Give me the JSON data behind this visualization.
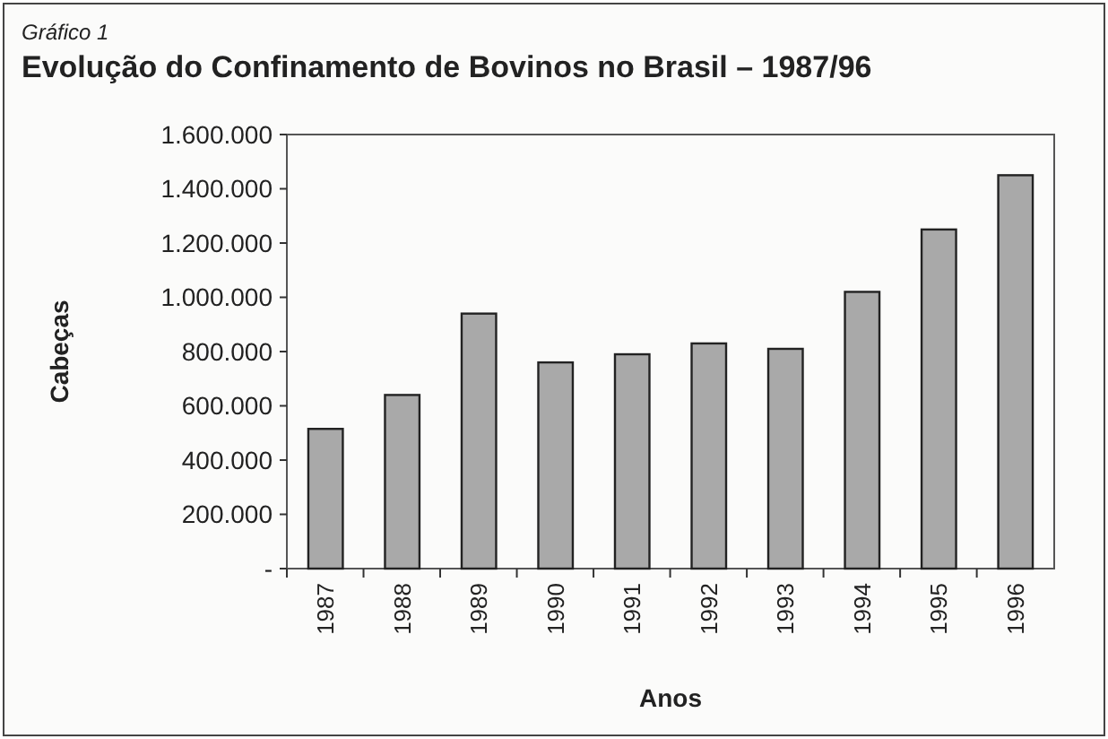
{
  "chart_data": {
    "type": "bar",
    "subtitle": "Gráfico 1",
    "title": "Evolução do Confinamento de Bovinos no Brasil – 1987/96",
    "xlabel": "Anos",
    "ylabel": "Cabeças",
    "categories": [
      "1987",
      "1988",
      "1989",
      "1990",
      "1991",
      "1992",
      "1993",
      "1994",
      "1995",
      "1996"
    ],
    "values": [
      515000,
      640000,
      940000,
      760000,
      790000,
      830000,
      810000,
      1020000,
      1250000,
      1450000
    ],
    "color": "#a9a9a9",
    "ylim": [
      0,
      1600000
    ],
    "yticks": [
      {
        "value": 0,
        "label": "-"
      },
      {
        "value": 200000,
        "label": "200.000"
      },
      {
        "value": 400000,
        "label": "400.000"
      },
      {
        "value": 600000,
        "label": "600.000"
      },
      {
        "value": 800000,
        "label": "800.000"
      },
      {
        "value": 1000000,
        "label": "1.000.000"
      },
      {
        "value": 1200000,
        "label": "1.200.000"
      },
      {
        "value": 1400000,
        "label": "1.400.000"
      },
      {
        "value": 1600000,
        "label": "1.600.000"
      }
    ],
    "grid": false
  }
}
